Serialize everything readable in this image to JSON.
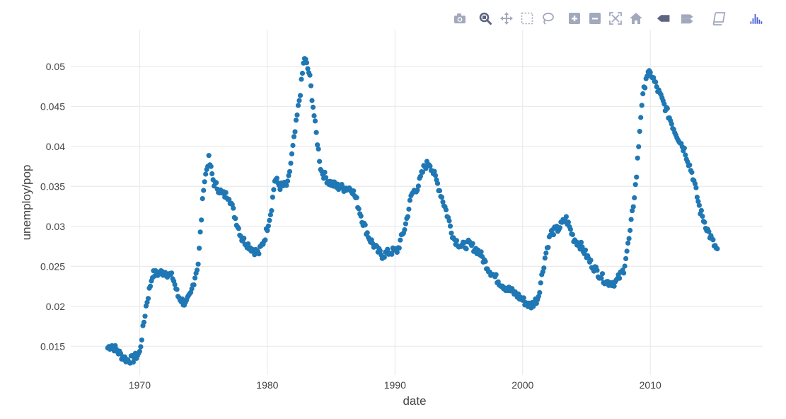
{
  "modebar": {
    "buttons": [
      {
        "name": "download-plot-button",
        "icon": "camera-icon"
      },
      {
        "name": "zoom-button",
        "icon": "zoom-icon"
      },
      {
        "name": "pan-button",
        "icon": "pan-icon"
      },
      {
        "name": "box-select-button",
        "icon": "box-select-icon"
      },
      {
        "name": "lasso-select-button",
        "icon": "lasso-icon"
      },
      {
        "name": "zoom-in-button",
        "icon": "zoom-in-icon"
      },
      {
        "name": "zoom-out-button",
        "icon": "zoom-out-icon"
      },
      {
        "name": "autoscale-button",
        "icon": "autoscale-icon"
      },
      {
        "name": "reset-axes-button",
        "icon": "home-icon"
      },
      {
        "name": "hover-closest-button",
        "icon": "hover-closest-icon"
      },
      {
        "name": "hover-compare-button",
        "icon": "hover-compare-icon"
      },
      {
        "name": "edit-in-chart-studio-button",
        "icon": "book-icon"
      },
      {
        "name": "plotly-logo-button",
        "icon": "plotly-logo-icon"
      }
    ],
    "colors": {
      "icon": "#a3a9bd",
      "active": "#5e6582",
      "logo": "#3f5bd8"
    }
  },
  "chart_data": {
    "type": "scatter",
    "xlabel": "date",
    "ylabel": "unemploy/pop",
    "x_ticks": [
      "1970",
      "1980",
      "1990",
      "2000",
      "2010"
    ],
    "y_ticks": [
      "0.015",
      "0.02",
      "0.025",
      "0.03",
      "0.035",
      "0.04",
      "0.045",
      "0.05"
    ],
    "xlim": [
      1964.6,
      2018.8
    ],
    "ylim": [
      0.0114,
      0.0546
    ],
    "grid": true,
    "marker_color": "#1f77b4",
    "anchors": [
      [
        1967.5,
        0.0148
      ],
      [
        1967.8,
        0.0152
      ],
      [
        1968.2,
        0.0145
      ],
      [
        1968.6,
        0.0138
      ],
      [
        1969.0,
        0.0133
      ],
      [
        1969.5,
        0.0134
      ],
      [
        1970.0,
        0.0142
      ],
      [
        1970.5,
        0.02
      ],
      [
        1971.0,
        0.024
      ],
      [
        1972.0,
        0.0243
      ],
      [
        1972.6,
        0.0236
      ],
      [
        1973.0,
        0.0213
      ],
      [
        1973.6,
        0.0202
      ],
      [
        1974.0,
        0.0215
      ],
      [
        1974.6,
        0.0255
      ],
      [
        1975.0,
        0.035
      ],
      [
        1975.4,
        0.0385
      ],
      [
        1975.8,
        0.0355
      ],
      [
        1976.5,
        0.034
      ],
      [
        1977.0,
        0.0338
      ],
      [
        1977.5,
        0.031
      ],
      [
        1978.0,
        0.0285
      ],
      [
        1978.8,
        0.0272
      ],
      [
        1979.3,
        0.0266
      ],
      [
        1979.8,
        0.0285
      ],
      [
        1980.3,
        0.032
      ],
      [
        1980.6,
        0.036
      ],
      [
        1981.0,
        0.035
      ],
      [
        1981.6,
        0.0352
      ],
      [
        1982.1,
        0.041
      ],
      [
        1982.6,
        0.047
      ],
      [
        1982.9,
        0.0512
      ],
      [
        1983.3,
        0.049
      ],
      [
        1983.8,
        0.042
      ],
      [
        1984.2,
        0.037
      ],
      [
        1984.8,
        0.0356
      ],
      [
        1985.4,
        0.035
      ],
      [
        1986.0,
        0.0348
      ],
      [
        1986.6,
        0.0348
      ],
      [
        1987.0,
        0.0332
      ],
      [
        1987.5,
        0.0305
      ],
      [
        1988.0,
        0.0285
      ],
      [
        1988.6,
        0.027
      ],
      [
        1989.0,
        0.0264
      ],
      [
        1989.6,
        0.0268
      ],
      [
        1990.2,
        0.027
      ],
      [
        1990.8,
        0.03
      ],
      [
        1991.3,
        0.034
      ],
      [
        1991.8,
        0.035
      ],
      [
        1992.3,
        0.0375
      ],
      [
        1992.7,
        0.038
      ],
      [
        1993.3,
        0.0355
      ],
      [
        1994.0,
        0.032
      ],
      [
        1994.6,
        0.0285
      ],
      [
        1995.2,
        0.0275
      ],
      [
        1995.8,
        0.0278
      ],
      [
        1996.6,
        0.0268
      ],
      [
        1997.4,
        0.0245
      ],
      [
        1998.2,
        0.023
      ],
      [
        1998.8,
        0.0222
      ],
      [
        1999.5,
        0.0215
      ],
      [
        2000.0,
        0.0208
      ],
      [
        2000.6,
        0.02
      ],
      [
        2001.2,
        0.021
      ],
      [
        2001.8,
        0.0265
      ],
      [
        2002.2,
        0.0292
      ],
      [
        2002.8,
        0.0297
      ],
      [
        2003.4,
        0.031
      ],
      [
        2004.0,
        0.0285
      ],
      [
        2004.6,
        0.0275
      ],
      [
        2005.3,
        0.0255
      ],
      [
        2006.0,
        0.024
      ],
      [
        2006.6,
        0.023
      ],
      [
        2007.3,
        0.023
      ],
      [
        2007.9,
        0.0245
      ],
      [
        2008.4,
        0.029
      ],
      [
        2008.9,
        0.036
      ],
      [
        2009.3,
        0.045
      ],
      [
        2009.7,
        0.049
      ],
      [
        2010.1,
        0.049
      ],
      [
        2010.6,
        0.047
      ],
      [
        2011.2,
        0.0448
      ],
      [
        2011.9,
        0.042
      ],
      [
        2012.7,
        0.0395
      ],
      [
        2013.3,
        0.0365
      ],
      [
        2013.9,
        0.032
      ],
      [
        2014.5,
        0.0295
      ],
      [
        2014.9,
        0.028
      ],
      [
        2015.3,
        0.0268
      ]
    ],
    "points_per_year": 12,
    "noise_amplitude": 0.0005
  }
}
